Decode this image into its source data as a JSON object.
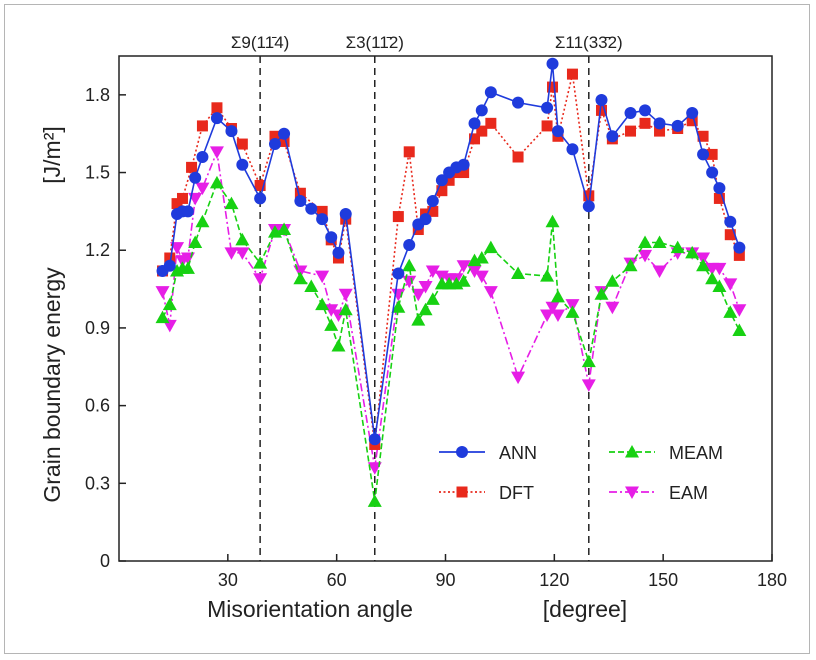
{
  "chart_data": {
    "type": "line",
    "xlabel": "Misorientation angle",
    "xunit": "[degree]",
    "ylabel": "Grain boundary energy",
    "yunit": "[J/m²]",
    "xlim": [
      0,
      180
    ],
    "ylim": [
      0,
      1.95
    ],
    "xticks": [
      "30",
      "60",
      "90",
      "120",
      "150",
      "180"
    ],
    "yticks": [
      "0",
      "0.3",
      "0.6",
      "0.9",
      "1.2",
      "1.5",
      "1.8"
    ],
    "grid": false,
    "legend_position": "lower-right",
    "boundaries": [
      {
        "label": "Σ9(11̄4)",
        "x": 38.9
      },
      {
        "label": "Σ3(11̄2)",
        "x": 70.5
      },
      {
        "label": "Σ11(33̄2)",
        "x": 129.5
      }
    ],
    "series": [
      {
        "name": "ANN",
        "color": "#1f3bdc",
        "marker": "circle",
        "line": "solid",
        "points": [
          [
            12,
            1.12
          ],
          [
            14,
            1.14
          ],
          [
            16,
            1.34
          ],
          [
            17.5,
            1.35
          ],
          [
            19,
            1.35
          ],
          [
            21,
            1.48
          ],
          [
            23,
            1.56
          ],
          [
            27,
            1.71
          ],
          [
            31,
            1.66
          ],
          [
            34,
            1.53
          ],
          [
            38.9,
            1.4
          ],
          [
            43,
            1.61
          ],
          [
            45.5,
            1.65
          ],
          [
            50,
            1.39
          ],
          [
            53,
            1.36
          ],
          [
            56,
            1.32
          ],
          [
            58.5,
            1.25
          ],
          [
            60.5,
            1.19
          ],
          [
            62.5,
            1.34
          ],
          [
            70.5,
            0.47
          ],
          [
            77,
            1.11
          ],
          [
            80,
            1.22
          ],
          [
            82.5,
            1.3
          ],
          [
            84.5,
            1.32
          ],
          [
            86.5,
            1.39
          ],
          [
            89,
            1.47
          ],
          [
            91,
            1.5
          ],
          [
            93,
            1.52
          ],
          [
            95,
            1.53
          ],
          [
            98,
            1.69
          ],
          [
            100,
            1.74
          ],
          [
            102.5,
            1.81
          ],
          [
            110,
            1.77
          ],
          [
            118,
            1.75
          ],
          [
            119.5,
            1.92
          ],
          [
            121,
            1.66
          ],
          [
            125,
            1.59
          ],
          [
            129.5,
            1.37
          ],
          [
            133,
            1.78
          ],
          [
            136,
            1.64
          ],
          [
            141,
            1.73
          ],
          [
            145,
            1.74
          ],
          [
            149,
            1.69
          ],
          [
            154,
            1.68
          ],
          [
            158,
            1.73
          ],
          [
            161,
            1.57
          ],
          [
            163.5,
            1.5
          ],
          [
            165.5,
            1.44
          ],
          [
            168.5,
            1.31
          ],
          [
            171,
            1.21
          ]
        ]
      },
      {
        "name": "DFT",
        "color": "#e8291c",
        "marker": "square",
        "line": "dotted",
        "points": [
          [
            12,
            1.12
          ],
          [
            14,
            1.17
          ],
          [
            16,
            1.38
          ],
          [
            17.5,
            1.4
          ],
          [
            20,
            1.52
          ],
          [
            23,
            1.68
          ],
          [
            27,
            1.75
          ],
          [
            31,
            1.67
          ],
          [
            34,
            1.61
          ],
          [
            38.9,
            1.45
          ],
          [
            43,
            1.64
          ],
          [
            45.5,
            1.62
          ],
          [
            50,
            1.42
          ],
          [
            56,
            1.35
          ],
          [
            58.5,
            1.24
          ],
          [
            60.5,
            1.17
          ],
          [
            62.5,
            1.32
          ],
          [
            70.5,
            0.45
          ],
          [
            77,
            1.33
          ],
          [
            80,
            1.58
          ],
          [
            82.5,
            1.28
          ],
          [
            84.5,
            1.34
          ],
          [
            86.5,
            1.35
          ],
          [
            89,
            1.43
          ],
          [
            91,
            1.47
          ],
          [
            93,
            1.5
          ],
          [
            95,
            1.5
          ],
          [
            98,
            1.63
          ],
          [
            100,
            1.66
          ],
          [
            102.5,
            1.69
          ],
          [
            110,
            1.56
          ],
          [
            118,
            1.68
          ],
          [
            119.5,
            1.83
          ],
          [
            121,
            1.64
          ],
          [
            125,
            1.88
          ],
          [
            129.5,
            1.41
          ],
          [
            133,
            1.74
          ],
          [
            136,
            1.63
          ],
          [
            141,
            1.66
          ],
          [
            145,
            1.69
          ],
          [
            149,
            1.66
          ],
          [
            154,
            1.67
          ],
          [
            158,
            1.7
          ],
          [
            161,
            1.64
          ],
          [
            163.5,
            1.57
          ],
          [
            165.5,
            1.4
          ],
          [
            168.5,
            1.26
          ],
          [
            171,
            1.18
          ]
        ]
      },
      {
        "name": "MEAM",
        "color": "#17d112",
        "marker": "triangle-up",
        "line": "dashed",
        "points": [
          [
            12,
            0.94
          ],
          [
            14,
            0.99
          ],
          [
            16,
            1.12
          ],
          [
            17.5,
            1.13
          ],
          [
            19,
            1.13
          ],
          [
            21,
            1.23
          ],
          [
            23,
            1.31
          ],
          [
            27,
            1.46
          ],
          [
            31,
            1.38
          ],
          [
            34,
            1.24
          ],
          [
            38.9,
            1.15
          ],
          [
            43,
            1.27
          ],
          [
            45.5,
            1.28
          ],
          [
            50,
            1.09
          ],
          [
            53,
            1.06
          ],
          [
            56,
            0.99
          ],
          [
            58.5,
            0.91
          ],
          [
            60.5,
            0.83
          ],
          [
            62.5,
            0.97
          ],
          [
            70.5,
            0.23
          ],
          [
            77,
            0.98
          ],
          [
            80,
            1.14
          ],
          [
            82.5,
            0.93
          ],
          [
            84.5,
            0.97
          ],
          [
            86.5,
            1.01
          ],
          [
            89,
            1.07
          ],
          [
            91,
            1.07
          ],
          [
            93,
            1.07
          ],
          [
            95,
            1.08
          ],
          [
            98,
            1.16
          ],
          [
            100,
            1.17
          ],
          [
            102.5,
            1.21
          ],
          [
            110,
            1.11
          ],
          [
            118,
            1.1
          ],
          [
            119.5,
            1.31
          ],
          [
            121,
            1.02
          ],
          [
            125,
            0.96
          ],
          [
            129.5,
            0.77
          ],
          [
            133,
            1.03
          ],
          [
            136,
            1.08
          ],
          [
            141,
            1.14
          ],
          [
            145,
            1.23
          ],
          [
            149,
            1.23
          ],
          [
            154,
            1.21
          ],
          [
            158,
            1.19
          ],
          [
            161,
            1.14
          ],
          [
            163.5,
            1.09
          ],
          [
            165.5,
            1.06
          ],
          [
            168.5,
            0.96
          ],
          [
            171,
            0.89
          ]
        ]
      },
      {
        "name": "EAM",
        "color": "#e61ee6",
        "marker": "triangle-down",
        "line": "dashdot",
        "points": [
          [
            12,
            1.04
          ],
          [
            14,
            0.91
          ],
          [
            16,
            1.21
          ],
          [
            17.5,
            1.16
          ],
          [
            19,
            1.17
          ],
          [
            21,
            1.4
          ],
          [
            23,
            1.44
          ],
          [
            27,
            1.58
          ],
          [
            31,
            1.19
          ],
          [
            34,
            1.19
          ],
          [
            38.9,
            1.09
          ],
          [
            43,
            1.28
          ],
          [
            45.5,
            1.28
          ],
          [
            50,
            1.12
          ],
          [
            56,
            1.1
          ],
          [
            58.5,
            0.97
          ],
          [
            60.5,
            0.95
          ],
          [
            62.5,
            1.03
          ],
          [
            70.5,
            0.36
          ],
          [
            77,
            1.03
          ],
          [
            80,
            1.08
          ],
          [
            82.5,
            1.03
          ],
          [
            84.5,
            1.06
          ],
          [
            86.5,
            1.12
          ],
          [
            89,
            1.1
          ],
          [
            91,
            1.09
          ],
          [
            93,
            1.09
          ],
          [
            95,
            1.14
          ],
          [
            98,
            1.12
          ],
          [
            100,
            1.1
          ],
          [
            102.5,
            1.04
          ],
          [
            110,
            0.71
          ],
          [
            118,
            0.95
          ],
          [
            119.5,
            0.98
          ],
          [
            121,
            0.95
          ],
          [
            125,
            0.99
          ],
          [
            129.5,
            0.68
          ],
          [
            133,
            1.04
          ],
          [
            136,
            0.98
          ],
          [
            141,
            1.15
          ],
          [
            145,
            1.18
          ],
          [
            149,
            1.12
          ],
          [
            154,
            1.19
          ],
          [
            158,
            1.19
          ],
          [
            161,
            1.17
          ],
          [
            163.5,
            1.13
          ],
          [
            165.5,
            1.13
          ],
          [
            168.5,
            1.07
          ],
          [
            171,
            0.97
          ]
        ]
      }
    ]
  }
}
